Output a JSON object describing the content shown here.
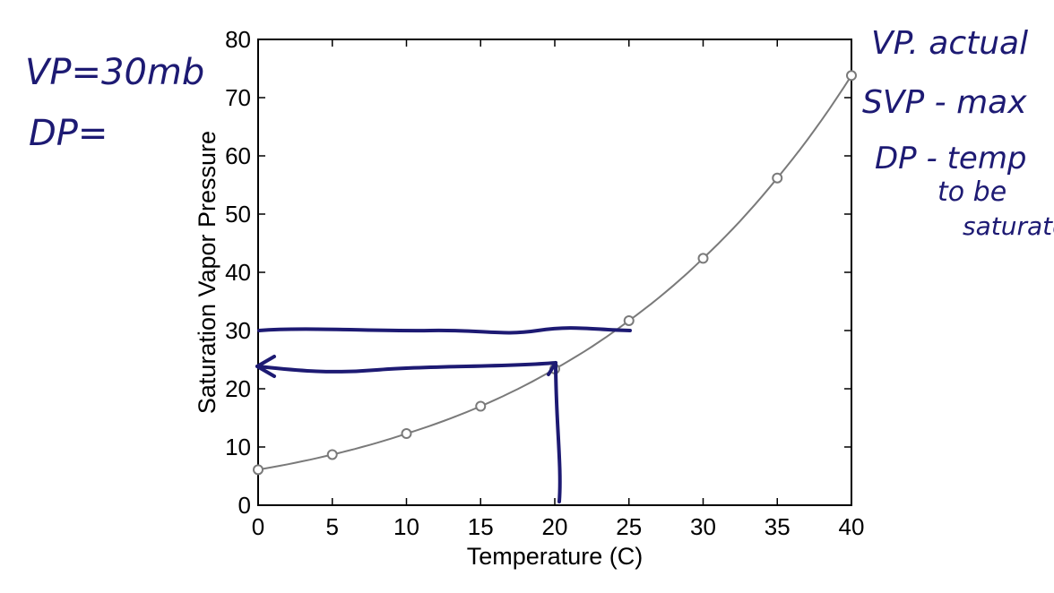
{
  "chart_data": {
    "type": "line",
    "xlabel": "Temperature (C)",
    "ylabel": "Saturation Vapor Pressure",
    "xlim": [
      0,
      40
    ],
    "ylim": [
      0,
      80
    ],
    "xticks": [
      0,
      5,
      10,
      15,
      20,
      25,
      30,
      35,
      40
    ],
    "yticks": [
      0,
      10,
      20,
      30,
      40,
      50,
      60,
      70,
      80
    ],
    "grid": false,
    "series": [
      {
        "color": "#7a7a7a",
        "x": [
          0,
          5,
          10,
          15,
          20,
          25,
          30,
          35,
          40
        ],
        "y": [
          6.1,
          8.7,
          12.3,
          17.0,
          23.4,
          31.7,
          42.4,
          56.2,
          73.8
        ]
      }
    ]
  },
  "annotations": {
    "left_notes": [
      "VP=30mb",
      "DP="
    ],
    "right_notes": [
      "VP. actual",
      "SVP - max",
      "DP - temp",
      "to be",
      "saturate"
    ]
  },
  "colors": {
    "ink": "#1d1a73",
    "curve": "#7a7a7a",
    "axis": "#000000"
  }
}
